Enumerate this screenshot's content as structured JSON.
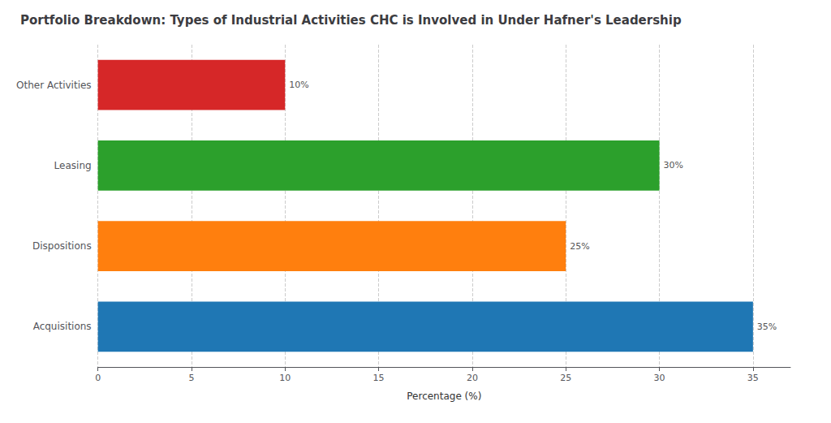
{
  "chart_data": {
    "type": "bar",
    "orientation": "horizontal",
    "title": "Portfolio Breakdown: Types of Industrial Activities CHC is Involved in Under Hafner's Leadership",
    "categories": [
      "Acquisitions",
      "Dispositions",
      "Leasing",
      "Other Activities"
    ],
    "values": [
      35,
      25,
      30,
      10
    ],
    "value_labels": [
      "35%",
      "25%",
      "30%",
      "10%"
    ],
    "colors": [
      "#1f77b4",
      "#ff7f0e",
      "#2ca02c",
      "#d62728"
    ],
    "xlabel": "Percentage (%)",
    "xlim": [
      0,
      37
    ],
    "xticks": [
      0,
      5,
      10,
      15,
      20,
      25,
      30,
      35
    ],
    "grid": true,
    "data_labels": true
  }
}
